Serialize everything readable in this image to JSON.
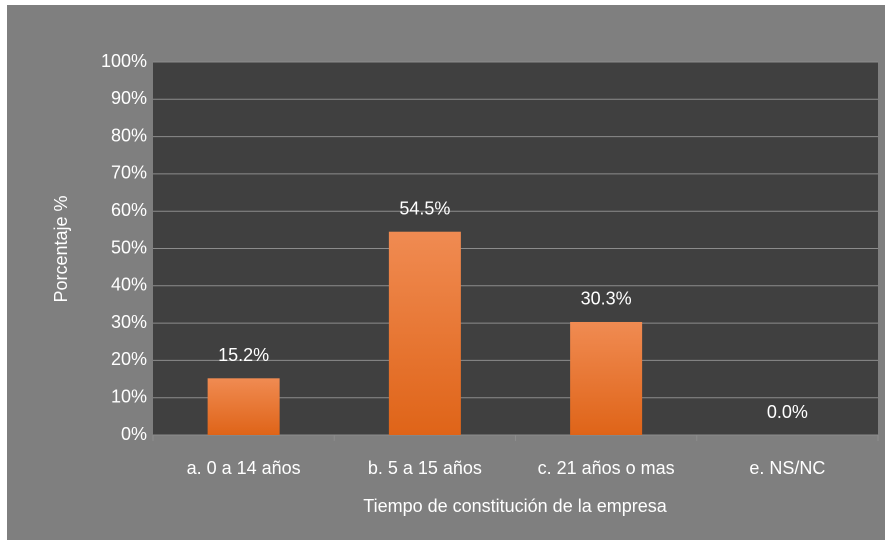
{
  "chart_data": {
    "type": "bar",
    "x_label": "Tiempo de constitución de la empresa",
    "y_label": "Porcentaje %",
    "categories": [
      "a. 0 a 14 años",
      "b. 5 a 15 años",
      "c. 21 años o mas",
      "e. NS/NC"
    ],
    "values": [
      15.2,
      54.5,
      30.3,
      0.0
    ],
    "value_labels": [
      "15.2%",
      "54.5%",
      "30.3%",
      "0.0%"
    ],
    "color": "#ed7d31",
    "ylim": [
      0,
      100
    ],
    "yticks": [
      {
        "value": 0,
        "label": "0%"
      },
      {
        "value": 10,
        "label": "10%"
      },
      {
        "value": 20,
        "label": "20%"
      },
      {
        "value": 30,
        "label": "30%"
      },
      {
        "value": 40,
        "label": "40%"
      },
      {
        "value": 50,
        "label": "50%"
      },
      {
        "value": 60,
        "label": "60%"
      },
      {
        "value": 70,
        "label": "70%"
      },
      {
        "value": 80,
        "label": "80%"
      },
      {
        "value": 90,
        "label": "90%"
      },
      {
        "value": 100,
        "label": "100%"
      }
    ],
    "grid": true
  }
}
